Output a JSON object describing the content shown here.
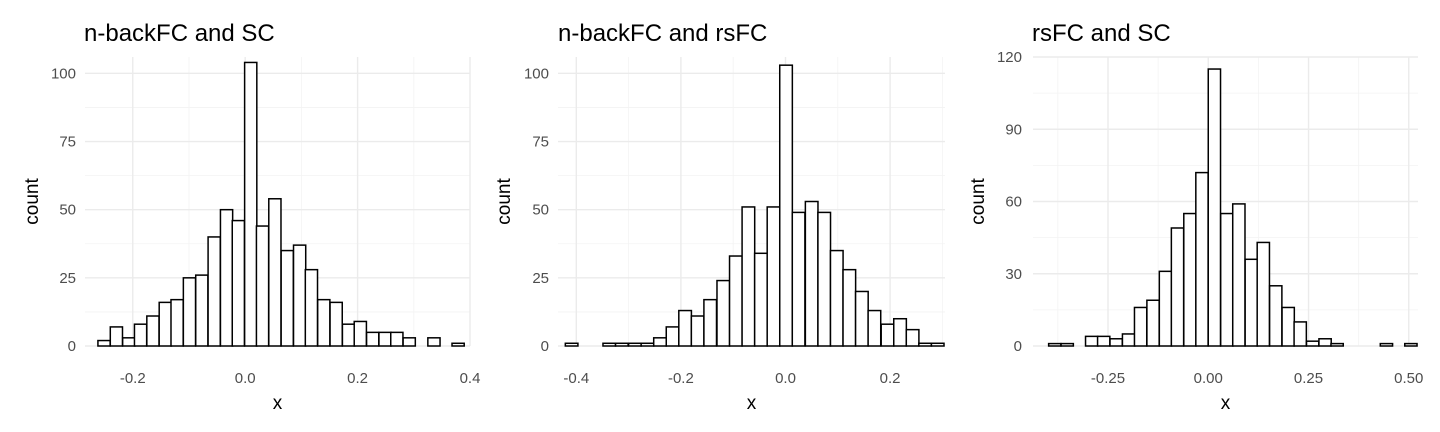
{
  "chart_data": [
    {
      "type": "bar",
      "title": "n-backFC and SC",
      "xlabel": "x",
      "ylabel": "count",
      "xlim": [
        -0.285,
        0.4
      ],
      "ylim": [
        0,
        106
      ],
      "xticks": [
        -0.2,
        0.0,
        0.2,
        0.4
      ],
      "xtick_labels": [
        "-0.2",
        "0.0",
        "0.2",
        "0.4"
      ],
      "yticks": [
        0,
        25,
        50,
        75,
        100
      ],
      "ytick_labels": [
        "0",
        "25",
        "50",
        "75",
        "100"
      ],
      "grid": true,
      "bin_width": 0.0217,
      "bins": [
        {
          "x0": -0.262,
          "count": 2
        },
        {
          "x0": -0.24,
          "count": 7
        },
        {
          "x0": -0.218,
          "count": 3
        },
        {
          "x0": -0.197,
          "count": 8
        },
        {
          "x0": -0.175,
          "count": 11
        },
        {
          "x0": -0.153,
          "count": 16
        },
        {
          "x0": -0.132,
          "count": 17
        },
        {
          "x0": -0.11,
          "count": 25
        },
        {
          "x0": -0.088,
          "count": 26
        },
        {
          "x0": -0.066,
          "count": 40
        },
        {
          "x0": -0.044,
          "count": 50
        },
        {
          "x0": -0.023,
          "count": 46
        },
        {
          "x0": -0.001,
          "count": 104
        },
        {
          "x0": 0.02,
          "count": 44
        },
        {
          "x0": 0.042,
          "count": 54
        },
        {
          "x0": 0.064,
          "count": 35
        },
        {
          "x0": 0.086,
          "count": 37
        },
        {
          "x0": 0.107,
          "count": 28
        },
        {
          "x0": 0.129,
          "count": 17
        },
        {
          "x0": 0.151,
          "count": 16
        },
        {
          "x0": 0.173,
          "count": 8
        },
        {
          "x0": 0.194,
          "count": 9
        },
        {
          "x0": 0.216,
          "count": 5
        },
        {
          "x0": 0.238,
          "count": 5
        },
        {
          "x0": 0.259,
          "count": 5
        },
        {
          "x0": 0.281,
          "count": 3
        },
        {
          "x0": 0.303,
          "count": 0
        },
        {
          "x0": 0.325,
          "count": 3
        },
        {
          "x0": 0.346,
          "count": 0
        },
        {
          "x0": 0.368,
          "count": 1
        }
      ]
    },
    {
      "type": "bar",
      "title": "n-backFC and rsFC",
      "xlabel": "x",
      "ylabel": "count",
      "xlim": [
        -0.435,
        0.305
      ],
      "ylim": [
        0,
        106
      ],
      "xticks": [
        -0.4,
        -0.2,
        0.0,
        0.2
      ],
      "xtick_labels": [
        "-0.4",
        "-0.2",
        "0.0",
        "0.2"
      ],
      "yticks": [
        0,
        25,
        50,
        75,
        100
      ],
      "ytick_labels": [
        "0",
        "25",
        "50",
        "75",
        "100"
      ],
      "grid": true,
      "bin_width": 0.0241,
      "bins": [
        {
          "x0": -0.421,
          "count": 1
        },
        {
          "x0": -0.397,
          "count": 0
        },
        {
          "x0": -0.373,
          "count": 0
        },
        {
          "x0": -0.349,
          "count": 1
        },
        {
          "x0": -0.325,
          "count": 1
        },
        {
          "x0": -0.3,
          "count": 1
        },
        {
          "x0": -0.276,
          "count": 1
        },
        {
          "x0": -0.252,
          "count": 3
        },
        {
          "x0": -0.228,
          "count": 7
        },
        {
          "x0": -0.204,
          "count": 13
        },
        {
          "x0": -0.18,
          "count": 11
        },
        {
          "x0": -0.156,
          "count": 17
        },
        {
          "x0": -0.131,
          "count": 24
        },
        {
          "x0": -0.107,
          "count": 33
        },
        {
          "x0": -0.083,
          "count": 51
        },
        {
          "x0": -0.059,
          "count": 34
        },
        {
          "x0": -0.035,
          "count": 51
        },
        {
          "x0": -0.011,
          "count": 103
        },
        {
          "x0": 0.013,
          "count": 49
        },
        {
          "x0": 0.038,
          "count": 53
        },
        {
          "x0": 0.062,
          "count": 49
        },
        {
          "x0": 0.086,
          "count": 35
        },
        {
          "x0": 0.11,
          "count": 28
        },
        {
          "x0": 0.134,
          "count": 20
        },
        {
          "x0": 0.158,
          "count": 13
        },
        {
          "x0": 0.183,
          "count": 8
        },
        {
          "x0": 0.207,
          "count": 10
        },
        {
          "x0": 0.231,
          "count": 6
        },
        {
          "x0": 0.255,
          "count": 1
        },
        {
          "x0": 0.279,
          "count": 1
        }
      ]
    },
    {
      "type": "bar",
      "title": "rsFC and SC",
      "xlabel": "x",
      "ylabel": "count",
      "xlim": [
        -0.437,
        0.523
      ],
      "ylim": [
        0,
        120
      ],
      "xticks": [
        -0.25,
        0.0,
        0.25,
        0.5
      ],
      "xtick_labels": [
        "-0.25",
        "0.00",
        "0.25",
        "0.50"
      ],
      "yticks": [
        0,
        30,
        60,
        90,
        120
      ],
      "ytick_labels": [
        "0",
        "30",
        "60",
        "90",
        "120"
      ],
      "grid": true,
      "bin_width": 0.0306,
      "bins": [
        {
          "x0": -0.398,
          "count": 1
        },
        {
          "x0": -0.367,
          "count": 1
        },
        {
          "x0": -0.337,
          "count": 0
        },
        {
          "x0": -0.306,
          "count": 4
        },
        {
          "x0": -0.276,
          "count": 4
        },
        {
          "x0": -0.245,
          "count": 3
        },
        {
          "x0": -0.214,
          "count": 5
        },
        {
          "x0": -0.184,
          "count": 16
        },
        {
          "x0": -0.153,
          "count": 19
        },
        {
          "x0": -0.122,
          "count": 31
        },
        {
          "x0": -0.092,
          "count": 49
        },
        {
          "x0": -0.061,
          "count": 55
        },
        {
          "x0": -0.031,
          "count": 72
        },
        {
          "x0": 0.0,
          "count": 115
        },
        {
          "x0": 0.031,
          "count": 55
        },
        {
          "x0": 0.061,
          "count": 59
        },
        {
          "x0": 0.092,
          "count": 36
        },
        {
          "x0": 0.122,
          "count": 43
        },
        {
          "x0": 0.153,
          "count": 25
        },
        {
          "x0": 0.184,
          "count": 16
        },
        {
          "x0": 0.214,
          "count": 10
        },
        {
          "x0": 0.245,
          "count": 2
        },
        {
          "x0": 0.276,
          "count": 3
        },
        {
          "x0": 0.306,
          "count": 1
        },
        {
          "x0": 0.337,
          "count": 0
        },
        {
          "x0": 0.367,
          "count": 0
        },
        {
          "x0": 0.398,
          "count": 0
        },
        {
          "x0": 0.429,
          "count": 1
        },
        {
          "x0": 0.459,
          "count": 0
        },
        {
          "x0": 0.49,
          "count": 1
        }
      ]
    }
  ]
}
